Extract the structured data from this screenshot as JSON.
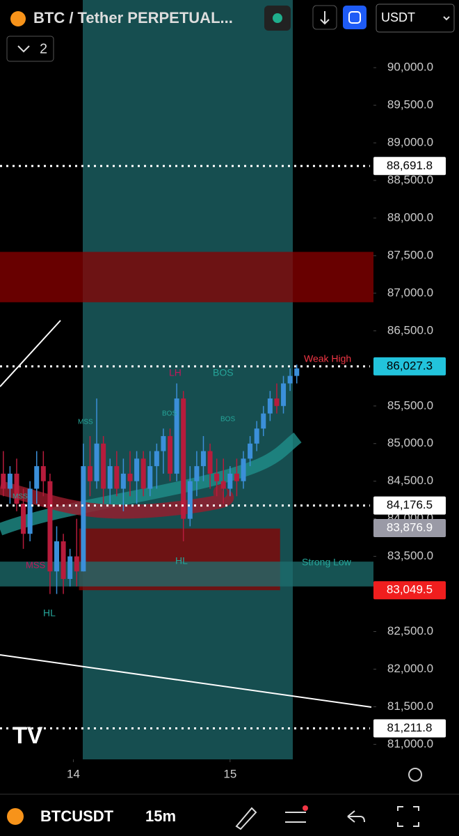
{
  "header": {
    "title": "BTC / Tether PERPETUAL...",
    "layout_count": "2",
    "currency": "USDT"
  },
  "chart_data": {
    "type": "candlestick",
    "ylim": [
      80800,
      90900
    ],
    "yticks": [
      {
        "value": 81000,
        "label": "81,000.0"
      },
      {
        "value": 81500,
        "label": "81,500.0"
      },
      {
        "value": 82000,
        "label": "82,000.0"
      },
      {
        "value": 82500,
        "label": "82,500.0"
      },
      {
        "value": 83000,
        "label": "83,000.0"
      },
      {
        "value": 83500,
        "label": "83,500.0"
      },
      {
        "value": 84000,
        "label": "84,000.0"
      },
      {
        "value": 84500,
        "label": "84,500.0"
      },
      {
        "value": 85000,
        "label": "85,000.0"
      },
      {
        "value": 85500,
        "label": "85,500.0"
      },
      {
        "value": 86000,
        "label": "86,000.0"
      },
      {
        "value": 86500,
        "label": "86,500.0"
      },
      {
        "value": 87000,
        "label": "87,000.0"
      },
      {
        "value": 87500,
        "label": "87,500.0"
      },
      {
        "value": 88000,
        "label": "88,000.0"
      },
      {
        "value": 88500,
        "label": "88,500.0"
      },
      {
        "value": 89000,
        "label": "89,000.0"
      },
      {
        "value": 89500,
        "label": "89,500.0"
      },
      {
        "value": 90000,
        "label": "90,000.0"
      }
    ],
    "xlim": [
      0,
      56
    ],
    "xticks": [
      {
        "value": 11,
        "label": "14"
      },
      {
        "value": 34.5,
        "label": "15"
      }
    ],
    "x": [
      0.5,
      1.5,
      2.5,
      3.5,
      4.5,
      5.5,
      6.5,
      7.5,
      8.5,
      9.5,
      10.5,
      11.5,
      12.5,
      13.5,
      14.5,
      15.5,
      16.5,
      17.5,
      18.5,
      19.5,
      20.5,
      21.5,
      22.5,
      23.5,
      24.5,
      25.5,
      26.5,
      27.5,
      28.5,
      29.5,
      30.5,
      31.5,
      32.5,
      33.5,
      34.5,
      35.5,
      36.5,
      37.5,
      38.5,
      39.5,
      40.5,
      41.5,
      42.5,
      43.5,
      44.5
    ],
    "open": [
      84600,
      84400,
      84600,
      84200,
      83800,
      84400,
      84700,
      84500,
      83300,
      83700,
      83200,
      83500,
      83300,
      84700,
      84500,
      85000,
      84400,
      84700,
      84400,
      84600,
      84500,
      84800,
      84400,
      84700,
      84900,
      85100,
      84600,
      85600,
      84000,
      84500,
      84700,
      84900,
      84600,
      84500,
      84400,
      84600,
      84500,
      84800,
      85000,
      85200,
      85400,
      85600,
      85500,
      85800,
      85900
    ],
    "high": [
      84900,
      84700,
      84800,
      84400,
      84500,
      84900,
      84900,
      84600,
      83900,
      83800,
      83600,
      84000,
      85000,
      85100,
      85600,
      85100,
      84800,
      84900,
      84800,
      84900,
      84900,
      84900,
      84900,
      85000,
      85200,
      85200,
      85800,
      85700,
      84700,
      84900,
      85100,
      85000,
      84800,
      84800,
      84700,
      84800,
      84900,
      85100,
      85300,
      85500,
      85700,
      85800,
      85900,
      86000,
      86050
    ],
    "low": [
      84300,
      84200,
      84100,
      83600,
      83700,
      84200,
      84300,
      83000,
      83000,
      83000,
      83100,
      83100,
      83300,
      84300,
      84400,
      84200,
      84200,
      84300,
      84100,
      84300,
      84200,
      84300,
      84300,
      84400,
      84600,
      84500,
      84500,
      83700,
      83900,
      84300,
      84500,
      84400,
      84300,
      84200,
      84300,
      84300,
      84400,
      84700,
      84900,
      85100,
      85300,
      85400,
      85400,
      85700,
      85800
    ],
    "close": [
      84400,
      84600,
      84200,
      83800,
      84400,
      84700,
      84500,
      83300,
      83700,
      83200,
      83500,
      83300,
      84700,
      84500,
      85000,
      84400,
      84700,
      84400,
      84600,
      84500,
      84800,
      84400,
      84700,
      84900,
      85100,
      84600,
      85600,
      84000,
      84500,
      84700,
      84900,
      84600,
      84500,
      84400,
      84600,
      84500,
      84800,
      85000,
      85200,
      85400,
      85600,
      85500,
      85800,
      85900,
      86000
    ],
    "up_color": "#3b8fd9",
    "down_color": "#b71c3c",
    "zones": [
      {
        "top": 87550,
        "bottom": 86880,
        "from": 0,
        "to": 56,
        "color": "#8b0000"
      },
      {
        "top": 83870,
        "bottom": 83050,
        "from": 11.85,
        "to": 42,
        "color": "#8b0000"
      },
      {
        "top": 83430,
        "bottom": 83100,
        "from": 0,
        "to": 56,
        "color": "#1d6f6f"
      }
    ],
    "price_tags": [
      {
        "value": 88691.8,
        "label": "88,691.8",
        "color": "#ffffff",
        "dotted": true
      },
      {
        "value": 86027.3,
        "label": "86,027.3",
        "color": "#22c3dc",
        "dotted": true
      },
      {
        "value": 84176.5,
        "label": "84,176.5",
        "color": "#ffffff",
        "dotted": true
      },
      {
        "value": 83876.9,
        "label": "83,876.9",
        "color": "#9a9aa6",
        "dotted": false
      },
      {
        "value": 83049.5,
        "label": "83,049.5",
        "color": "#f01e1e",
        "dotted": false
      },
      {
        "value": 81211.8,
        "label": "81,211.8",
        "color": "#ffffff",
        "dotted": true
      }
    ],
    "annotations": [
      "Weak High",
      "Strong Low",
      "LH",
      "BOS",
      "BOS",
      "BOS",
      "MSS",
      "MSS",
      "MSS",
      "HL",
      "HL"
    ]
  },
  "footer": {
    "symbol": "BTCUSDT",
    "interval": "15m"
  }
}
